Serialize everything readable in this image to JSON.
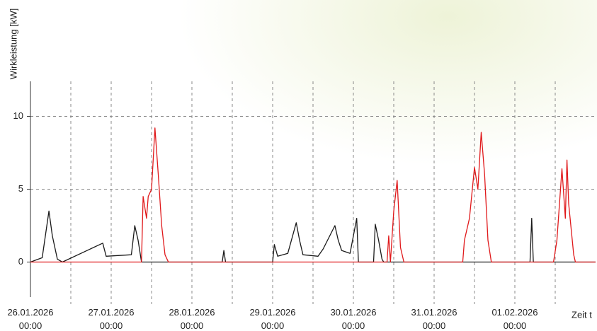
{
  "chart_data": {
    "type": "line",
    "ylabel": "Wirkleistung [kW]",
    "xlabel": "Zeit t",
    "ylim": [
      -2.4,
      12.4
    ],
    "yticks": [
      0,
      5,
      10
    ],
    "xlim": [
      "2026-01-26T00:00",
      "2026-02-02T00:00"
    ],
    "xticks": [
      {
        "value": "2026-01-26T00:00",
        "label": "26.01.2026 00:00"
      },
      {
        "value": "2026-01-27T00:00",
        "label": "27.01.2026 00:00"
      },
      {
        "value": "2026-01-28T00:00",
        "label": "28.01.2026 00:00"
      },
      {
        "value": "2026-01-29T00:00",
        "label": "29.01.2026 00:00"
      },
      {
        "value": "2026-01-30T00:00",
        "label": "30.01.2026 00:00"
      },
      {
        "value": "2026-01-31T00:00",
        "label": "31.01.2026 00:00"
      },
      {
        "value": "2026-02-01T00:00",
        "label": "01.02.2026 00:00"
      }
    ],
    "xgrid_minor": [
      "2026-01-26T12:00",
      "2026-01-27T12:00",
      "2026-01-28T12:00",
      "2026-01-29T12:00",
      "2026-01-30T12:00",
      "2026-01-31T12:00",
      "2026-02-01T12:00"
    ],
    "grid": true,
    "series": [
      {
        "color": "#1a1a1a",
        "x": [
          "2026-01-26T00:00",
          "2026-01-26T03:30",
          "2026-01-26T05:30",
          "2026-01-26T06:30",
          "2026-01-26T08:00",
          "2026-01-26T09:30",
          "2026-01-26T21:30",
          "2026-01-26T22:30",
          "2026-01-27T06:00",
          "2026-01-27T07:00",
          "2026-01-27T08:00",
          "2026-01-27T09:00",
          "2026-01-28T09:00",
          "2026-01-28T09:30",
          "2026-01-28T10:00",
          "2026-01-29T00:00",
          "2026-01-29T00:30",
          "2026-01-29T01:30",
          "2026-01-29T04:30",
          "2026-01-29T07:00",
          "2026-01-29T08:00",
          "2026-01-29T09:00",
          "2026-01-29T13:30",
          "2026-01-29T15:00",
          "2026-01-29T18:30",
          "2026-01-29T19:30",
          "2026-01-29T20:30",
          "2026-01-29T23:00",
          "2026-01-30T01:00",
          "2026-01-30T01:30",
          "2026-01-30T06:00",
          "2026-01-30T06:30",
          "2026-01-30T07:30",
          "2026-01-30T08:30",
          "2026-01-30T09:00",
          "2026-02-01T04:30",
          "2026-02-01T05:00",
          "2026-02-01T05:30",
          "2026-02-02T00:00"
        ],
        "values": [
          0,
          0.3,
          3.5,
          1.8,
          0.2,
          0,
          1.3,
          0.4,
          0.5,
          2.5,
          1.5,
          0,
          0,
          0.8,
          0,
          0,
          1.2,
          0.4,
          0.6,
          2.7,
          1.5,
          0.5,
          0.4,
          0.9,
          2.5,
          1.5,
          0.8,
          0.6,
          3.0,
          0,
          0,
          2.6,
          1.5,
          0.2,
          0,
          0,
          3.0,
          0,
          0
        ]
      },
      {
        "color": "#e0191b",
        "x": [
          "2026-01-26T00:00",
          "2026-01-27T09:00",
          "2026-01-27T09:30",
          "2026-01-27T10:30",
          "2026-01-27T11:00",
          "2026-01-27T12:00",
          "2026-01-27T13:00",
          "2026-01-27T14:00",
          "2026-01-27T15:00",
          "2026-01-27T16:00",
          "2026-01-27T17:00",
          "2026-01-30T10:00",
          "2026-01-30T10:30",
          "2026-01-30T11:00",
          "2026-01-30T12:00",
          "2026-01-30T13:00",
          "2026-01-30T14:00",
          "2026-01-30T15:00",
          "2026-01-31T08:30",
          "2026-01-31T09:00",
          "2026-01-31T10:30",
          "2026-01-31T12:00",
          "2026-01-31T13:00",
          "2026-01-31T14:00",
          "2026-01-31T15:00",
          "2026-01-31T16:00",
          "2026-01-31T17:00",
          "2026-02-01T11:30",
          "2026-02-01T12:30",
          "2026-02-01T14:00",
          "2026-02-01T15:00",
          "2026-02-01T15:30",
          "2026-02-01T16:00",
          "2026-02-01T17:30",
          "2026-02-01T18:00",
          "2026-02-02T00:00"
        ],
        "values": [
          0,
          0,
          4.5,
          3,
          4.5,
          5,
          9.2,
          6,
          2.5,
          0.5,
          0,
          0,
          1.8,
          0,
          3.5,
          5.6,
          1,
          0,
          0,
          1.5,
          3,
          6.5,
          5,
          8.9,
          6,
          1.5,
          0,
          0,
          1.5,
          6.4,
          3,
          7,
          4,
          0.5,
          0,
          0
        ]
      }
    ]
  }
}
